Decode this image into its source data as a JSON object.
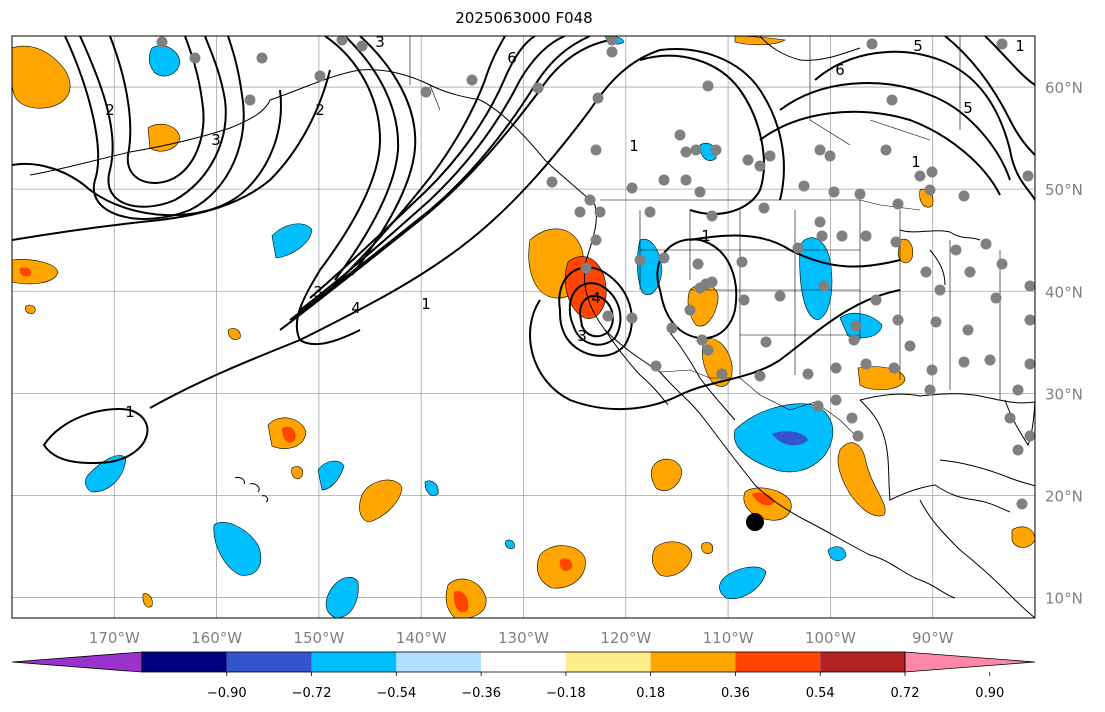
{
  "title": "2025063000 F048",
  "map": {
    "lon_labels": [
      "170°W",
      "160°W",
      "150°W",
      "140°W",
      "130°W",
      "120°W",
      "110°W",
      "100°W",
      "90°W"
    ],
    "lat_labels": [
      "60°N",
      "50°N",
      "40°N",
      "30°N",
      "20°N",
      "10°N"
    ],
    "contour_labels": [
      "3",
      "6",
      "6",
      "5",
      "5",
      "1",
      "1",
      "1",
      "3",
      "4",
      "1",
      "4",
      "3",
      "1",
      "2",
      "2",
      "3",
      "1"
    ],
    "colors": {
      "contour": "#000000",
      "coast": "#000000",
      "grid": "#808080",
      "station": "#808080",
      "marker": "#000000"
    }
  },
  "colorbar": {
    "colors": [
      "#9933cc",
      "#000080",
      "#3355cc",
      "#00bfff",
      "#b0e0ff",
      "#ffffff",
      "#ffec8b",
      "#ffa500",
      "#ff4500",
      "#b22222",
      "#ff88aa"
    ],
    "tick_labels": [
      "−0.90",
      "−0.72",
      "−0.54",
      "−0.36",
      "−0.18",
      "0.18",
      "0.36",
      "0.54",
      "0.72",
      "0.90"
    ]
  }
}
